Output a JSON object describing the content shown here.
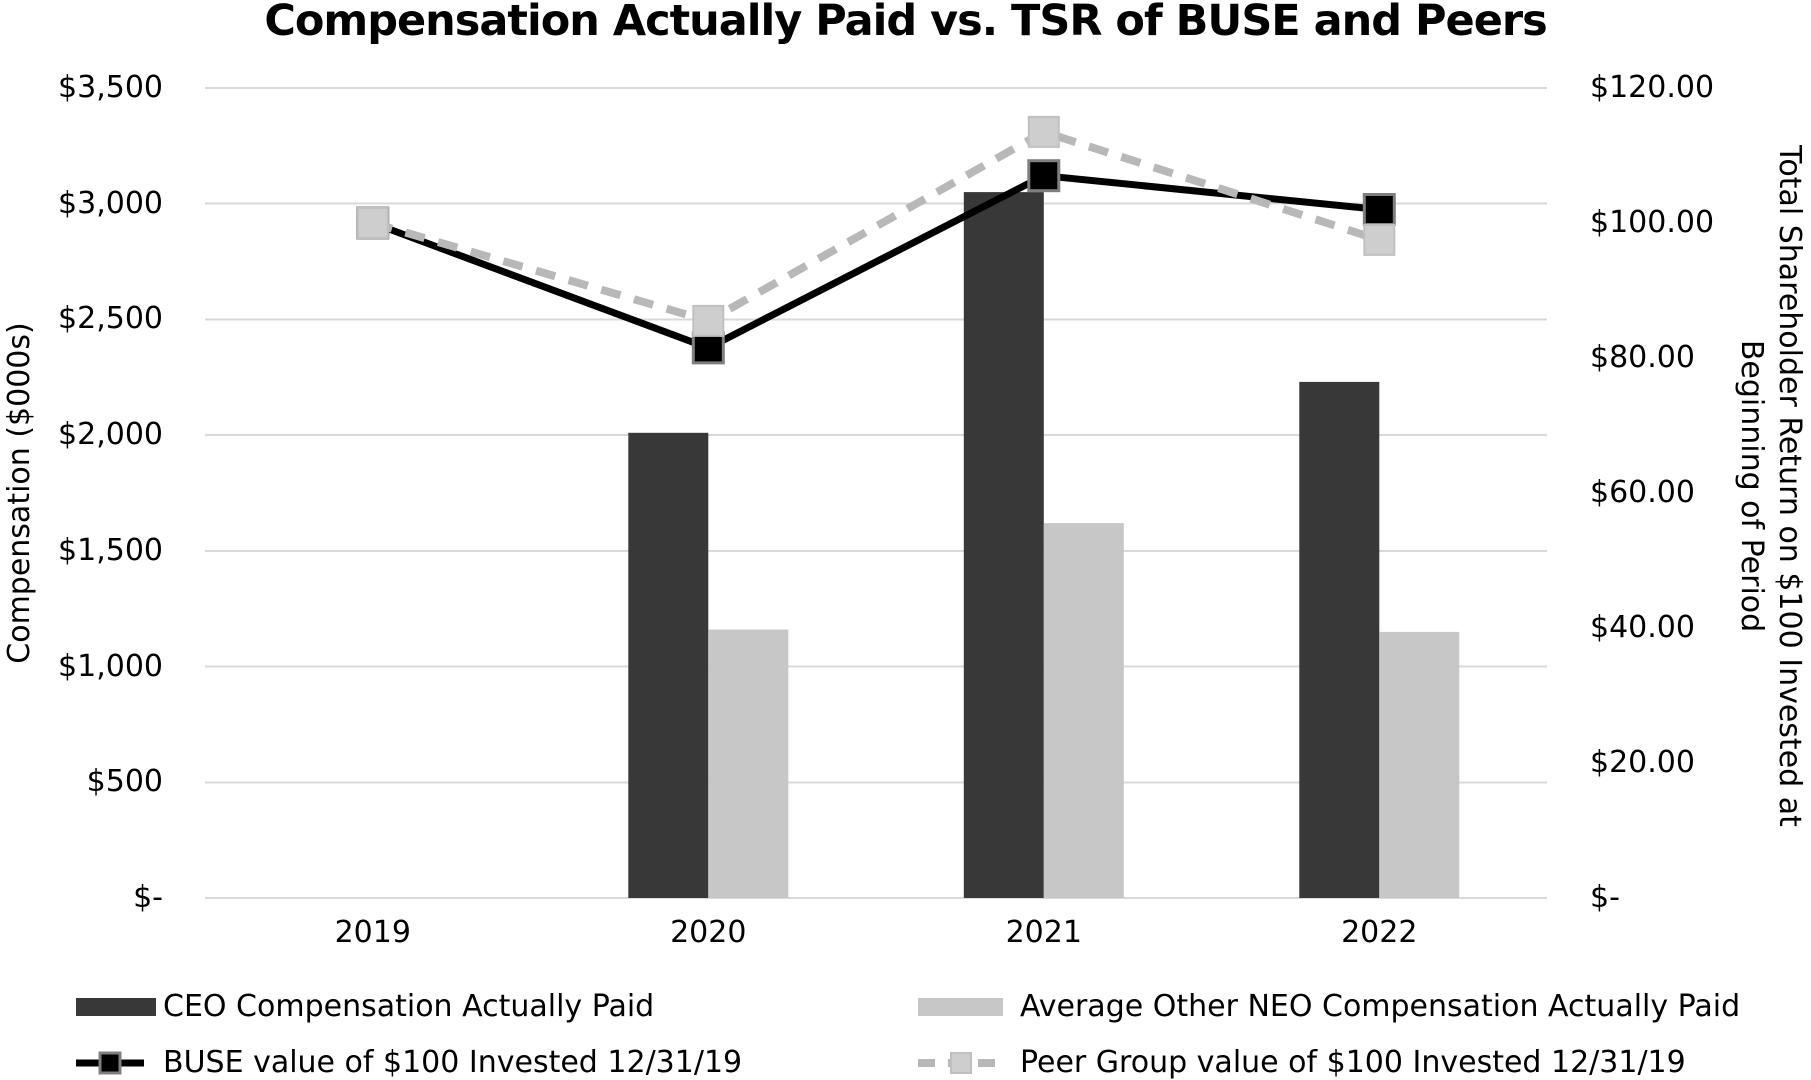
{
  "title": "Compensation Actually Paid vs. TSR of BUSE and Peers",
  "left_axis": {
    "title": "Compensation ($000s)",
    "ticks": [
      "$3,500",
      "$3,000",
      "$2,500",
      "$2,000",
      "$1,500",
      "$1,000",
      "$500",
      "$-"
    ],
    "tick_values": [
      3500,
      3000,
      2500,
      2000,
      1500,
      1000,
      500,
      0
    ]
  },
  "right_axis": {
    "title_line1": "Total Shareholder Return on $100 Invested at",
    "title_line2": "Beginning of Period",
    "ticks": [
      "$120.00",
      "$100.00",
      "$80.00",
      "$60.00",
      "$40.00",
      "$20.00",
      "$-"
    ],
    "tick_values": [
      120,
      100,
      80,
      60,
      40,
      20,
      0
    ]
  },
  "x_axis": {
    "categories": [
      "2019",
      "2020",
      "2021",
      "2022"
    ]
  },
  "legend": [
    {
      "label": "CEO Compensation Actually Paid",
      "swatch": "bar-dark"
    },
    {
      "label": "Average Other NEO Compensation Actually Paid",
      "swatch": "bar-light"
    },
    {
      "label": "BUSE value of $100 Invested 12/31/19",
      "swatch": "line-black-square"
    },
    {
      "label": "Peer Group value of $100 Invested 12/31/19",
      "swatch": "line-gray-dashed-square"
    }
  ],
  "colors": {
    "ceo_bar": "#383838",
    "neo_bar": "#c7c7c7",
    "buse_line": "#000000",
    "buse_marker_border": "#7f7f7f",
    "peer_line": "#b8b8b8",
    "peer_marker_fill": "#cecece",
    "peer_marker_border": "#c0c0c0",
    "gridline": "#d9d9d9",
    "text": "#000000",
    "background": "#ffffff"
  },
  "chart_data": {
    "type": "combo",
    "subtype": "bars-plus-lines-dual-axis",
    "categories": [
      "2019",
      "2020",
      "2021",
      "2022"
    ],
    "series": [
      {
        "name": "CEO Compensation Actually Paid",
        "type": "bar",
        "axis": "left",
        "color": "#383838",
        "values": [
          null,
          2010,
          3050,
          2230
        ]
      },
      {
        "name": "Average Other NEO Compensation Actually Paid",
        "type": "bar",
        "axis": "left",
        "color": "#c7c7c7",
        "values": [
          null,
          1160,
          1620,
          1150
        ]
      },
      {
        "name": "BUSE value of $100 Invested 12/31/19",
        "type": "line",
        "axis": "right",
        "color": "#000000",
        "marker": "black-square",
        "values": [
          100,
          81.5,
          107,
          102
        ]
      },
      {
        "name": "Peer Group value of $100 Invested 12/31/19",
        "type": "line",
        "axis": "right",
        "color": "#b8b8b8",
        "dashed": true,
        "marker": "gray-square",
        "values": [
          100,
          85.5,
          113.5,
          97.5
        ]
      }
    ],
    "title": "Compensation Actually Paid vs. TSR of BUSE and Peers",
    "xlabel": "",
    "ylabel_left": "Compensation ($000s)",
    "ylabel_right": "Total Shareholder Return on $100 Invested at Beginning of Period",
    "left_ylim": [
      0,
      3500
    ],
    "right_ylim": [
      0,
      120
    ],
    "gridlines": "horizontal",
    "legend_position": "bottom"
  }
}
